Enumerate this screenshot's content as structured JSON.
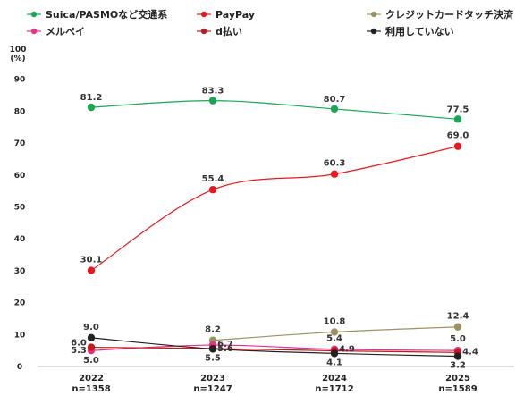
{
  "chart_data": {
    "type": "line",
    "x": [
      "2022",
      "2023",
      "2024",
      "2025"
    ],
    "x_sublabels": [
      "n=1358",
      "n=1247",
      "n=1712",
      "n=1589"
    ],
    "ylim": [
      0,
      100
    ],
    "yticks": [
      0,
      10,
      20,
      30,
      40,
      50,
      60,
      70,
      80,
      90,
      100
    ],
    "ylabel_top": "100",
    "ylabel_unit": "(%)",
    "legend_position": "top",
    "grid": false,
    "series": [
      {
        "name": "Suica/PASMOなど交通系",
        "color": "#1aa655",
        "values": [
          81.2,
          83.3,
          80.7,
          77.5
        ],
        "labels": [
          "81.2",
          "83.3",
          "80.7",
          "77.5"
        ]
      },
      {
        "name": "PayPay",
        "color": "#e8191e",
        "values": [
          30.1,
          55.4,
          60.3,
          69.0
        ],
        "labels": [
          "30.1",
          "55.4",
          "60.3",
          "69.0"
        ]
      },
      {
        "name": "クレジットカードタッチ決済",
        "color": "#9e9263",
        "values": [
          null,
          8.2,
          10.8,
          12.4
        ],
        "labels": [
          "",
          "8.2",
          "10.8",
          "12.4"
        ]
      },
      {
        "name": "メルペイ",
        "color": "#e6308a",
        "values": [
          5.0,
          6.7,
          5.4,
          5.0
        ],
        "labels": [
          "5.0",
          "6.7",
          "5.4",
          "5.0"
        ]
      },
      {
        "name": "d払い",
        "color": "#c21a1a",
        "values": [
          6.0,
          5.6,
          4.9,
          4.4
        ],
        "labels": [
          "6.0",
          "5.6",
          "4.9",
          "4.4"
        ]
      },
      {
        "name": "利用していない",
        "color": "#222222",
        "values": [
          9.0,
          5.5,
          4.1,
          3.2
        ],
        "labels": [
          "9.0",
          "5.5",
          "4.1",
          "3.2"
        ]
      }
    ],
    "extra_labels": [
      {
        "text": "5.3",
        "x_index": 0,
        "value": 5.3
      }
    ]
  }
}
